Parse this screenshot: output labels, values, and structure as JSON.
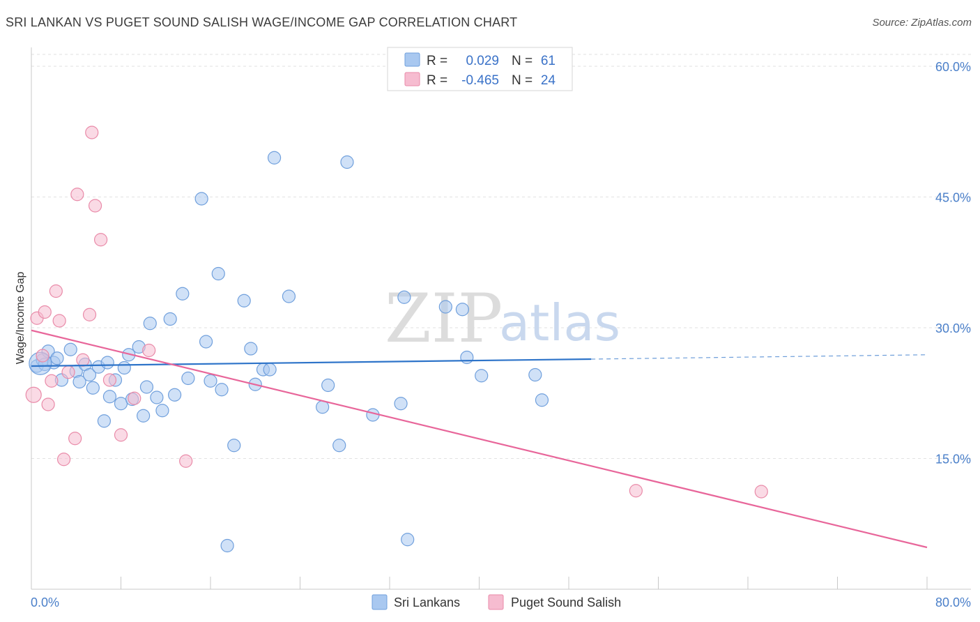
{
  "header": {
    "title": "SRI LANKAN VS PUGET SOUND SALISH WAGE/INCOME GAP CORRELATION CHART",
    "source": "Source: ZipAtlas.com"
  },
  "legend": {
    "rows": [
      {
        "r_label": "R =",
        "r_value": "0.029",
        "n_label": "N =",
        "n_value": "61",
        "color": "#a9c8f0"
      },
      {
        "r_label": "R =",
        "r_value": "-0.465",
        "n_label": "N =",
        "n_value": "24",
        "color": "#f6bcd0"
      }
    ]
  },
  "watermark": {
    "zip": "ZIP",
    "atlas": "atlas"
  },
  "chart_data": {
    "type": "scatter",
    "xlabel": "",
    "ylabel": "Wage/Income Gap",
    "xlim": [
      0,
      80
    ],
    "ylim": [
      0,
      62
    ],
    "x_tick_labels": [
      {
        "value": 0,
        "label": "0.0%"
      },
      {
        "value": 80,
        "label": "80.0%"
      }
    ],
    "y_tick_labels": [
      {
        "value": 15,
        "label": "15.0%"
      },
      {
        "value": 30,
        "label": "30.0%"
      },
      {
        "value": 45,
        "label": "45.0%"
      },
      {
        "value": 60,
        "label": "60.0%"
      }
    ],
    "grid": true,
    "legend_position": "top-center",
    "series": [
      {
        "name": "Sri Lankans",
        "color": "#a9c8f0",
        "stroke": "#6f9fdc",
        "line_color": "#2e74c9",
        "trend": {
          "x0": 0,
          "y0": 25.6,
          "x1": 50,
          "y1": 26.4,
          "dash_to_x": 80,
          "dash_to_y": 26.9
        },
        "points": [
          [
            0.5,
            25.6
          ],
          [
            1.0,
            26.3
          ],
          [
            1.2,
            25.8
          ],
          [
            1.5,
            27.3
          ],
          [
            2.0,
            26.0
          ],
          [
            2.3,
            26.5
          ],
          [
            2.7,
            24.0
          ],
          [
            3.5,
            27.5
          ],
          [
            4.0,
            25.0
          ],
          [
            4.3,
            23.8
          ],
          [
            4.8,
            25.8
          ],
          [
            5.2,
            24.6
          ],
          [
            5.5,
            23.1
          ],
          [
            6.0,
            25.5
          ],
          [
            6.5,
            19.3
          ],
          [
            6.8,
            26.0
          ],
          [
            7.0,
            22.1
          ],
          [
            7.5,
            24.0
          ],
          [
            8.0,
            21.3
          ],
          [
            8.3,
            25.4
          ],
          [
            8.7,
            26.9
          ],
          [
            9.0,
            21.8
          ],
          [
            9.6,
            27.8
          ],
          [
            10.0,
            19.9
          ],
          [
            10.3,
            23.2
          ],
          [
            10.6,
            30.5
          ],
          [
            11.2,
            22.0
          ],
          [
            11.7,
            20.5
          ],
          [
            12.4,
            31.0
          ],
          [
            12.8,
            22.3
          ],
          [
            13.5,
            33.9
          ],
          [
            14.0,
            24.2
          ],
          [
            15.2,
            44.8
          ],
          [
            15.6,
            28.4
          ],
          [
            16.0,
            23.9
          ],
          [
            16.7,
            36.2
          ],
          [
            17.0,
            22.9
          ],
          [
            18.1,
            16.5
          ],
          [
            19.0,
            33.1
          ],
          [
            19.6,
            27.6
          ],
          [
            20.0,
            23.5
          ],
          [
            20.7,
            25.2
          ],
          [
            21.3,
            25.2
          ],
          [
            21.7,
            49.5
          ],
          [
            23.0,
            33.6
          ],
          [
            26.0,
            20.9
          ],
          [
            26.5,
            23.4
          ],
          [
            27.5,
            16.5
          ],
          [
            28.2,
            49.0
          ],
          [
            30.5,
            20.0
          ],
          [
            33.0,
            21.3
          ],
          [
            33.3,
            33.5
          ],
          [
            33.6,
            5.7
          ],
          [
            37.0,
            32.4
          ],
          [
            38.5,
            32.1
          ],
          [
            38.9,
            26.6
          ],
          [
            40.2,
            24.5
          ],
          [
            45.0,
            24.6
          ],
          [
            45.6,
            21.7
          ],
          [
            17.5,
            5.0
          ],
          [
            0.8,
            25.9
          ]
        ],
        "sizes": {
          "big_index": 60
        }
      },
      {
        "name": "Puget Sound Salish",
        "color": "#f6bcd0",
        "stroke": "#e98aa8",
        "line_color": "#e8669a",
        "trend": {
          "x0": 0,
          "y0": 29.7,
          "x1": 80,
          "y1": 4.8
        },
        "points": [
          [
            0.2,
            22.3
          ],
          [
            0.5,
            31.1
          ],
          [
            1.0,
            26.8
          ],
          [
            1.2,
            31.8
          ],
          [
            1.5,
            21.2
          ],
          [
            1.8,
            23.9
          ],
          [
            2.2,
            34.2
          ],
          [
            2.5,
            30.8
          ],
          [
            2.9,
            14.9
          ],
          [
            3.3,
            24.9
          ],
          [
            3.9,
            17.3
          ],
          [
            4.1,
            45.3
          ],
          [
            4.6,
            26.3
          ],
          [
            5.2,
            31.5
          ],
          [
            5.4,
            52.4
          ],
          [
            5.7,
            44.0
          ],
          [
            6.2,
            40.1
          ],
          [
            7.0,
            24.0
          ],
          [
            8.0,
            17.7
          ],
          [
            9.2,
            21.9
          ],
          [
            10.5,
            27.4
          ],
          [
            13.8,
            14.7
          ],
          [
            54.0,
            11.3
          ],
          [
            65.2,
            11.2
          ]
        ]
      }
    ]
  },
  "bottom_legend": [
    {
      "label": "Sri Lankans",
      "color": "#a9c8f0"
    },
    {
      "label": "Puget Sound Salish",
      "color": "#f6bcd0"
    }
  ]
}
